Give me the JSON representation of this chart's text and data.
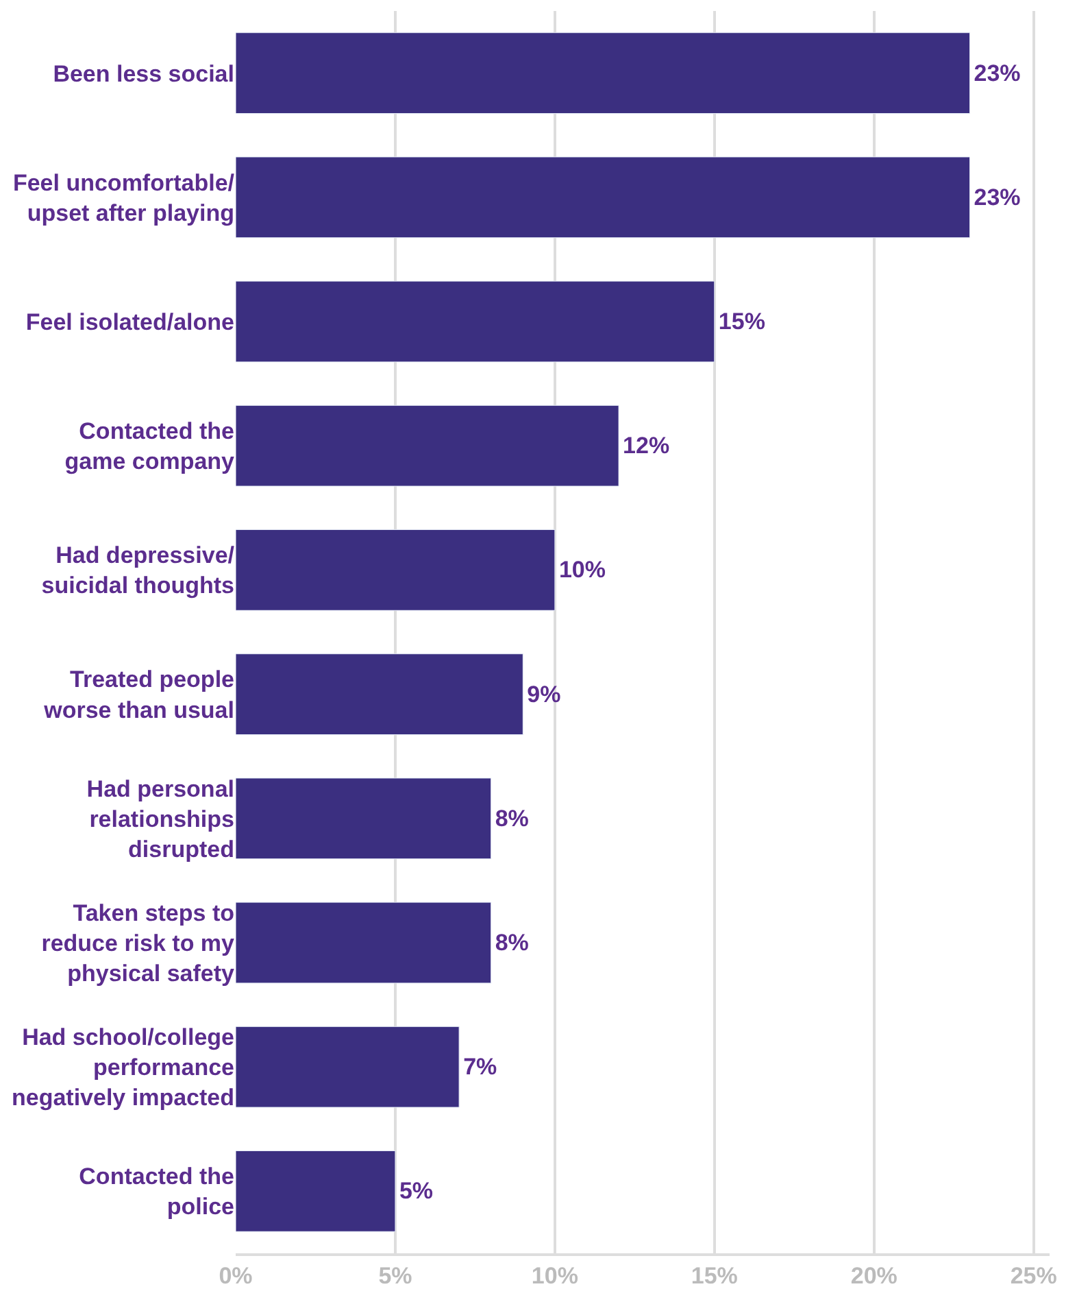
{
  "chart_data": {
    "type": "bar",
    "orientation": "horizontal",
    "categories": [
      "Been less social",
      "Feel uncomfortable/\nupset after playing",
      "Feel isolated/alone",
      "Contacted the\ngame company",
      "Had depressive/\nsuicidal thoughts",
      "Treated people\nworse than usual",
      "Had personal\nrelationships\ndisrupted",
      "Taken steps to\nreduce risk to my\nphysical safety",
      "Had school/college\nperformance\nnegatively impacted",
      "Contacted the\npolice"
    ],
    "values": [
      23,
      23,
      15,
      12,
      10,
      9,
      8,
      8,
      7,
      5
    ],
    "value_labels": [
      "23%",
      "23%",
      "15%",
      "12%",
      "10%",
      "9%",
      "8%",
      "8%",
      "7%",
      "5%"
    ],
    "color": "#3b2f80",
    "xlim": [
      0,
      25.5
    ],
    "xticks": [
      {
        "value": 0,
        "label": "0%"
      },
      {
        "value": 5,
        "label": "5%"
      },
      {
        "value": 10,
        "label": "10%"
      },
      {
        "value": 15,
        "label": "15%"
      },
      {
        "value": 20,
        "label": "20%"
      },
      {
        "value": 25,
        "label": "25%"
      }
    ],
    "grid": "x"
  }
}
